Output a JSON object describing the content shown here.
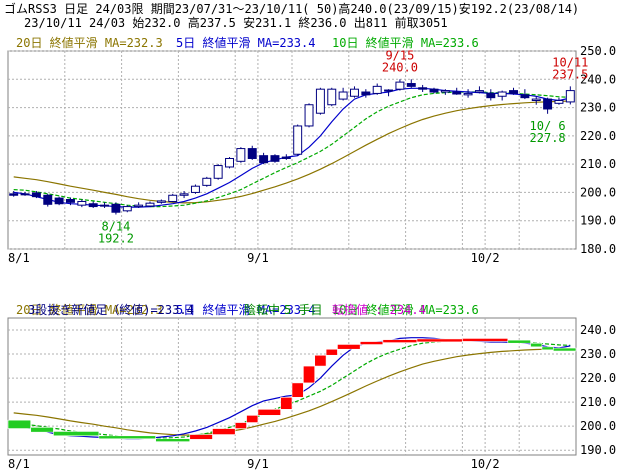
{
  "header": {
    "line1": "ゴムRSS3 日足 24/03限 期間23/07/31～23/10/11( 50)高240.0(23/09/15)安192.2(23/08/14)",
    "line2": "23/10/11 24/03 始232.0 高237.5 安231.1 終236.0 出811 前取3051"
  },
  "colors": {
    "ma20": "#8B7500",
    "ma5": "#0000cc",
    "ma10": "#00aa00",
    "up_candle": "#ffffff",
    "down_candle": "#000080",
    "rev_up": "#ff0000",
    "rev_down": "#22cc22",
    "annotation_high": "#cc0000",
    "annotation_low": "#009900",
    "grid": "#b0b0b0",
    "info_pink": "#cc00cc"
  },
  "chart_data": [
    {
      "type": "candlestick",
      "legend": {
        "ma20": "20日 終値平滑 MA=232.3",
        "ma5": "5日 終値平滑 MA=233.4",
        "ma10": "10日 終値平滑 MA=233.6"
      },
      "y_ticks": [
        "250.0",
        "240.0",
        "230.0",
        "220.0",
        "210.0",
        "200.0",
        "190.0",
        "180.0"
      ],
      "x_ticks": [
        "8/1",
        "9/1",
        "10/2"
      ],
      "ylim": [
        180,
        250
      ],
      "grid": true,
      "annotations": [
        {
          "date": "9/15",
          "value": "240.0",
          "kind": "high"
        },
        {
          "date": "8/14",
          "value": "192.2",
          "kind": "low"
        },
        {
          "date": "10/11",
          "value": "237.5",
          "kind": "high"
        },
        {
          "date": "10/ 6",
          "value": "227.8",
          "kind": "low"
        }
      ],
      "candles": [
        {
          "o": 199.5,
          "h": 200.5,
          "l": 198.5,
          "c": 199.0
        },
        {
          "o": 199.5,
          "h": 200.2,
          "l": 198.8,
          "c": 199.2
        },
        {
          "o": 199.8,
          "h": 200.5,
          "l": 198.0,
          "c": 198.5
        },
        {
          "o": 199.0,
          "h": 199.5,
          "l": 195.0,
          "c": 195.8
        },
        {
          "o": 198.0,
          "h": 198.5,
          "l": 195.5,
          "c": 196.0
        },
        {
          "o": 197.5,
          "h": 198.2,
          "l": 195.5,
          "c": 196.5
        },
        {
          "o": 195.5,
          "h": 197.5,
          "l": 194.8,
          "c": 196.8
        },
        {
          "o": 196.0,
          "h": 196.8,
          "l": 194.5,
          "c": 195.0
        },
        {
          "o": 195.5,
          "h": 196.5,
          "l": 194.5,
          "c": 195.3
        },
        {
          "o": 195.8,
          "h": 196.5,
          "l": 192.2,
          "c": 193.0
        },
        {
          "o": 193.5,
          "h": 195.5,
          "l": 193.0,
          "c": 195.0
        },
        {
          "o": 195.0,
          "h": 196.5,
          "l": 194.5,
          "c": 195.5
        },
        {
          "o": 195.2,
          "h": 196.8,
          "l": 194.8,
          "c": 196.2
        },
        {
          "o": 196.5,
          "h": 197.5,
          "l": 196.0,
          "c": 197.0
        },
        {
          "o": 196.8,
          "h": 199.5,
          "l": 196.5,
          "c": 199.0
        },
        {
          "o": 199.0,
          "h": 200.5,
          "l": 198.0,
          "c": 199.5
        },
        {
          "o": 200.0,
          "h": 202.8,
          "l": 199.5,
          "c": 202.2
        },
        {
          "o": 202.5,
          "h": 205.5,
          "l": 202.0,
          "c": 205.0
        },
        {
          "o": 205.0,
          "h": 210.0,
          "l": 204.5,
          "c": 209.5
        },
        {
          "o": 209.0,
          "h": 212.5,
          "l": 208.5,
          "c": 212.0
        },
        {
          "o": 211.0,
          "h": 216.0,
          "l": 210.5,
          "c": 215.5
        },
        {
          "o": 215.5,
          "h": 216.5,
          "l": 211.5,
          "c": 212.0
        },
        {
          "o": 213.0,
          "h": 214.0,
          "l": 210.0,
          "c": 210.5
        },
        {
          "o": 213.0,
          "h": 213.5,
          "l": 210.5,
          "c": 211.0
        },
        {
          "o": 212.5,
          "h": 213.5,
          "l": 211.5,
          "c": 212.0
        },
        {
          "o": 213.5,
          "h": 224.0,
          "l": 213.0,
          "c": 223.5
        },
        {
          "o": 223.5,
          "h": 231.5,
          "l": 223.0,
          "c": 231.0
        },
        {
          "o": 228.0,
          "h": 237.0,
          "l": 227.5,
          "c": 236.5
        },
        {
          "o": 231.0,
          "h": 237.0,
          "l": 230.5,
          "c": 236.5
        },
        {
          "o": 233.0,
          "h": 237.0,
          "l": 232.5,
          "c": 235.5
        },
        {
          "o": 234.0,
          "h": 237.5,
          "l": 233.5,
          "c": 236.5
        },
        {
          "o": 235.5,
          "h": 236.5,
          "l": 233.5,
          "c": 234.5
        },
        {
          "o": 235.0,
          "h": 238.5,
          "l": 234.5,
          "c": 237.5
        },
        {
          "o": 236.0,
          "h": 236.5,
          "l": 234.0,
          "c": 236.2
        },
        {
          "o": 236.5,
          "h": 240.0,
          "l": 236.0,
          "c": 239.0
        },
        {
          "o": 238.5,
          "h": 240.0,
          "l": 237.0,
          "c": 237.5
        },
        {
          "o": 237.0,
          "h": 238.0,
          "l": 235.5,
          "c": 236.5
        },
        {
          "o": 236.5,
          "h": 237.0,
          "l": 235.0,
          "c": 235.5
        },
        {
          "o": 235.5,
          "h": 236.5,
          "l": 234.5,
          "c": 236.0
        },
        {
          "o": 235.5,
          "h": 237.0,
          "l": 234.5,
          "c": 234.8
        },
        {
          "o": 234.5,
          "h": 236.5,
          "l": 233.5,
          "c": 235.0
        },
        {
          "o": 235.5,
          "h": 237.5,
          "l": 235.0,
          "c": 236.0
        },
        {
          "o": 235.0,
          "h": 236.5,
          "l": 232.5,
          "c": 233.5
        },
        {
          "o": 234.0,
          "h": 236.0,
          "l": 232.5,
          "c": 235.5
        },
        {
          "o": 236.0,
          "h": 237.0,
          "l": 234.5,
          "c": 235.0
        },
        {
          "o": 234.5,
          "h": 236.5,
          "l": 233.0,
          "c": 233.5
        },
        {
          "o": 232.5,
          "h": 234.0,
          "l": 231.0,
          "c": 233.0
        },
        {
          "o": 233.0,
          "h": 233.5,
          "l": 227.8,
          "c": 229.5
        },
        {
          "o": 231.5,
          "h": 233.5,
          "l": 231.0,
          "c": 232.5
        },
        {
          "o": 232.0,
          "h": 237.5,
          "l": 231.1,
          "c": 236.0
        }
      ],
      "ma5": [
        200.0,
        199.5,
        198.5,
        197.5,
        196.5,
        196.0,
        195.8,
        195.5,
        195.3,
        195.0,
        194.8,
        194.8,
        195.0,
        195.5,
        196.0,
        196.8,
        198.0,
        199.5,
        201.5,
        203.5,
        206.0,
        208.5,
        210.5,
        211.5,
        212.5,
        213.0,
        216.0,
        220.0,
        225.0,
        229.5,
        233.0,
        234.5,
        235.0,
        235.5,
        236.5,
        236.8,
        236.8,
        236.5,
        236.0,
        235.8,
        235.5,
        235.3,
        235.0,
        235.0,
        234.8,
        234.5,
        234.0,
        233.0,
        232.5,
        233.4
      ],
      "ma10": [
        201.0,
        200.8,
        200.2,
        199.5,
        198.8,
        198.0,
        197.5,
        197.0,
        196.5,
        196.0,
        195.5,
        195.2,
        195.0,
        195.0,
        195.2,
        195.5,
        196.2,
        197.0,
        198.2,
        199.5,
        201.0,
        203.0,
        205.0,
        207.0,
        208.8,
        210.5,
        212.5,
        214.5,
        217.0,
        220.0,
        223.0,
        226.0,
        228.5,
        230.5,
        232.0,
        233.5,
        234.5,
        235.0,
        235.3,
        235.5,
        235.5,
        235.5,
        235.3,
        235.2,
        235.0,
        234.8,
        234.5,
        234.2,
        233.8,
        233.6
      ],
      "ma20": [
        205.5,
        205.0,
        204.5,
        203.8,
        203.0,
        202.2,
        201.5,
        200.8,
        200.0,
        199.3,
        198.5,
        197.8,
        197.2,
        196.8,
        196.5,
        196.3,
        196.4,
        196.7,
        197.2,
        197.8,
        198.6,
        199.6,
        200.8,
        202.0,
        203.3,
        204.8,
        206.4,
        208.2,
        210.2,
        212.3,
        214.5,
        216.7,
        218.8,
        220.8,
        222.6,
        224.3,
        225.8,
        227.0,
        228.0,
        228.9,
        229.6,
        230.2,
        230.7,
        231.1,
        231.4,
        231.7,
        231.9,
        232.0,
        232.2,
        232.3
      ]
    },
    {
      "type": "three-line-break",
      "legend": {
        "ma20": "20日 終値平滑 MA=232.3",
        "ma5": "5日 終値平滑 MA=233.4",
        "ma10": "10日 終値平滑 MA=233.6"
      },
      "info_line": {
        "label": "3段抜き新値足（終値)=233.4",
        "state": "陰転中",
        "steps": "5 手目",
        "switch": "転換値 : 234.4"
      },
      "y_ticks": [
        "240.0",
        "230.0",
        "220.0",
        "210.0",
        "200.0",
        "190.0"
      ],
      "x_ticks": [
        "8/1",
        "9/1",
        "10/2"
      ],
      "ylim": [
        188,
        245
      ],
      "grid": true,
      "segments": [
        {
          "i0": 0,
          "i1": 2,
          "dir": "down",
          "from": 202.5,
          "to": 199.0
        },
        {
          "i0": 2,
          "i1": 4,
          "dir": "down",
          "from": 199.5,
          "to": 197.5
        },
        {
          "i0": 4,
          "i1": 8,
          "dir": "down",
          "from": 197.8,
          "to": 196.0
        },
        {
          "i0": 8,
          "i1": 13,
          "dir": "down",
          "from": 196.0,
          "to": 194.8
        },
        {
          "i0": 13,
          "i1": 16,
          "dir": "down",
          "from": 194.8,
          "to": 194.3
        },
        {
          "i0": 16,
          "i1": 18,
          "dir": "up",
          "from": 194.5,
          "to": 196.5
        },
        {
          "i0": 18,
          "i1": 20,
          "dir": "up",
          "from": 196.5,
          "to": 199.0
        },
        {
          "i0": 20,
          "i1": 21,
          "dir": "up",
          "from": 199.0,
          "to": 201.5
        },
        {
          "i0": 21,
          "i1": 22,
          "dir": "up",
          "from": 201.5,
          "to": 204.5
        },
        {
          "i0": 22,
          "i1": 24,
          "dir": "up",
          "from": 204.5,
          "to": 207.0
        },
        {
          "i0": 24,
          "i1": 25,
          "dir": "up",
          "from": 207.0,
          "to": 212.0
        },
        {
          "i0": 25,
          "i1": 26,
          "dir": "up",
          "from": 212.0,
          "to": 218.0
        },
        {
          "i0": 26,
          "i1": 27,
          "dir": "up",
          "from": 218.0,
          "to": 225.0
        },
        {
          "i0": 27,
          "i1": 28,
          "dir": "up",
          "from": 225.0,
          "to": 229.5
        },
        {
          "i0": 28,
          "i1": 29,
          "dir": "up",
          "from": 229.5,
          "to": 232.0
        },
        {
          "i0": 29,
          "i1": 31,
          "dir": "up",
          "from": 232.0,
          "to": 234.0
        },
        {
          "i0": 31,
          "i1": 33,
          "dir": "up",
          "from": 234.0,
          "to": 235.2
        },
        {
          "i0": 33,
          "i1": 36,
          "dir": "up",
          "from": 235.2,
          "to": 236.0
        },
        {
          "i0": 36,
          "i1": 40,
          "dir": "up",
          "from": 236.0,
          "to": 236.3
        },
        {
          "i0": 40,
          "i1": 44,
          "dir": "up",
          "from": 236.3,
          "to": 236.5
        },
        {
          "i0": 44,
          "i1": 46,
          "dir": "down",
          "from": 235.8,
          "to": 234.5
        },
        {
          "i0": 46,
          "i1": 47,
          "dir": "down",
          "from": 234.5,
          "to": 233.0
        },
        {
          "i0": 47,
          "i1": 48,
          "dir": "down",
          "from": 233.0,
          "to": 232.0
        },
        {
          "i0": 48,
          "i1": 50,
          "dir": "down",
          "from": 232.5,
          "to": 231.8
        }
      ]
    }
  ]
}
